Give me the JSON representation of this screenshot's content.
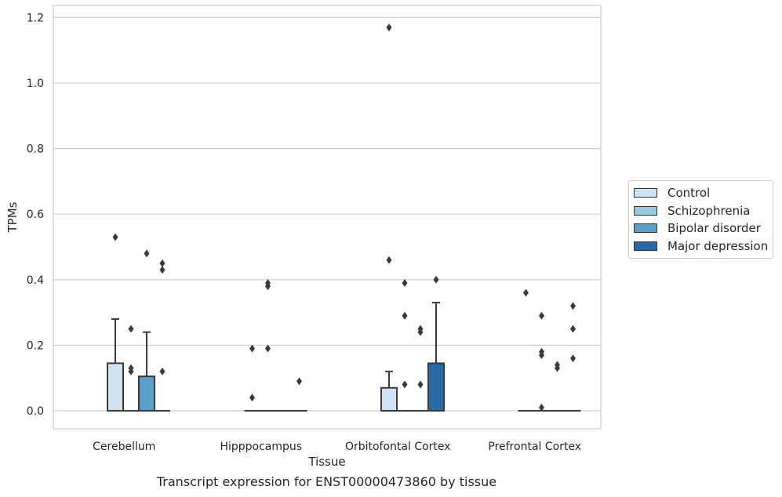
{
  "chart_data": {
    "type": "box",
    "xlabel": "Tissue",
    "ylabel": "TPMs",
    "ylim": [
      -0.057,
      1.232
    ],
    "yticks": [
      "0.0",
      "0.2",
      "0.4",
      "0.6",
      "0.8",
      "1.0",
      "1.2"
    ],
    "ytick_values": [
      0.0,
      0.2,
      0.4,
      0.6,
      0.8,
      1.0,
      1.2
    ],
    "grid": true,
    "legend_position": "right",
    "categories": [
      "Cerebellum",
      "Hipppocampus",
      "Orbitofontal Cortex",
      "Prefrontal Cortex"
    ],
    "series": [
      {
        "name": "Control",
        "color": "#d1e2f2",
        "boxes": [
          {
            "q1": 0.0,
            "median": 0.0,
            "q3": 0.145,
            "whisker_low": 0.0,
            "whisker_high": 0.28,
            "outliers": [
              0.53
            ]
          },
          {
            "q1": 0.0,
            "median": 0.0,
            "q3": 0.0,
            "whisker_low": 0.0,
            "whisker_high": 0.0,
            "outliers": [
              0.19,
              0.04
            ]
          },
          {
            "q1": 0.0,
            "median": 0.0,
            "q3": 0.07,
            "whisker_low": 0.0,
            "whisker_high": 0.12,
            "outliers": [
              0.46,
              1.17
            ]
          },
          {
            "q1": 0.0,
            "median": 0.0,
            "q3": 0.0,
            "whisker_low": 0.0,
            "whisker_high": 0.0,
            "outliers": [
              0.36
            ]
          }
        ]
      },
      {
        "name": "Schizophrenia",
        "color": "#9ac8e0",
        "boxes": [
          {
            "q1": 0.0,
            "median": 0.0,
            "q3": 0.0,
            "whisker_low": 0.0,
            "whisker_high": 0.0,
            "outliers": [
              0.25,
              0.13,
              0.12
            ]
          },
          {
            "q1": 0.0,
            "median": 0.0,
            "q3": 0.0,
            "whisker_low": 0.0,
            "whisker_high": 0.0,
            "outliers": [
              0.39,
              0.38,
              0.19
            ]
          },
          {
            "q1": 0.0,
            "median": 0.0,
            "q3": 0.0,
            "whisker_low": 0.0,
            "whisker_high": 0.0,
            "outliers": [
              0.39,
              0.29,
              0.08
            ]
          },
          {
            "q1": 0.0,
            "median": 0.0,
            "q3": 0.0,
            "whisker_low": 0.0,
            "whisker_high": 0.0,
            "outliers": [
              0.29,
              0.18,
              0.17,
              0.01
            ]
          }
        ]
      },
      {
        "name": "Bipolar disorder",
        "color": "#5a9ec9",
        "boxes": [
          {
            "q1": 0.0,
            "median": 0.0,
            "q3": 0.105,
            "whisker_low": 0.0,
            "whisker_high": 0.24,
            "outliers": [
              0.48
            ]
          },
          {
            "q1": 0.0,
            "median": 0.0,
            "q3": 0.0,
            "whisker_low": 0.0,
            "whisker_high": 0.0,
            "outliers": []
          },
          {
            "q1": 0.0,
            "median": 0.0,
            "q3": 0.0,
            "whisker_low": 0.0,
            "whisker_high": 0.0,
            "outliers": [
              0.25,
              0.24,
              0.08
            ]
          },
          {
            "q1": 0.0,
            "median": 0.0,
            "q3": 0.0,
            "whisker_low": 0.0,
            "whisker_high": 0.0,
            "outliers": [
              0.14,
              0.13
            ]
          }
        ]
      },
      {
        "name": "Major depression",
        "color": "#2a6aa9",
        "boxes": [
          {
            "q1": 0.0,
            "median": 0.0,
            "q3": 0.0,
            "whisker_low": 0.0,
            "whisker_high": 0.0,
            "outliers": [
              0.45,
              0.43,
              0.12
            ]
          },
          {
            "q1": 0.0,
            "median": 0.0,
            "q3": 0.0,
            "whisker_low": 0.0,
            "whisker_high": 0.0,
            "outliers": [
              0.09
            ]
          },
          {
            "q1": 0.0,
            "median": 0.0,
            "q3": 0.145,
            "whisker_low": 0.0,
            "whisker_high": 0.33,
            "outliers": [
              0.4
            ]
          },
          {
            "q1": 0.0,
            "median": 0.0,
            "q3": 0.0,
            "whisker_low": 0.0,
            "whisker_high": 0.0,
            "outliers": [
              0.32,
              0.25,
              0.16
            ]
          }
        ]
      }
    ]
  },
  "caption": "Transcript expression for ENST00000473860 by tissue"
}
